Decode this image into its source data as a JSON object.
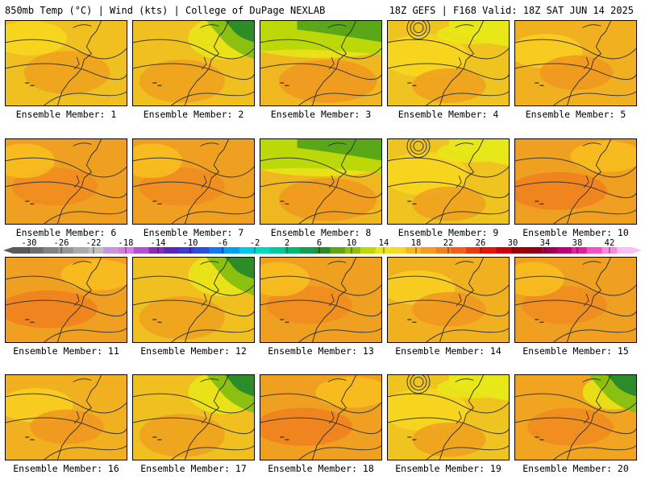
{
  "header": {
    "left": "850mb Temp (°C) | Wind (kts) | College of DuPage NEXLAB",
    "right": "18Z GEFS | F168 Valid: 18Z SAT JUN 14 2025"
  },
  "members": [
    {
      "label": "Ensemble Member: 1",
      "tone": "warm-yellow"
    },
    {
      "label": "Ensemble Member: 2",
      "tone": "green-ne"
    },
    {
      "label": "Ensemble Member: 3",
      "tone": "green-north"
    },
    {
      "label": "Ensemble Member: 4",
      "tone": "yellow-low"
    },
    {
      "label": "Ensemble Member: 5",
      "tone": "yellow-orange"
    },
    {
      "label": "Ensemble Member: 6",
      "tone": "orange"
    },
    {
      "label": "Ensemble Member: 7",
      "tone": "orange"
    },
    {
      "label": "Ensemble Member: 8",
      "tone": "green-north"
    },
    {
      "label": "Ensemble Member: 9",
      "tone": "yellow-low"
    },
    {
      "label": "Ensemble Member: 10",
      "tone": "orange-hot"
    },
    {
      "label": "Ensemble Member: 11",
      "tone": "orange-hot"
    },
    {
      "label": "Ensemble Member: 12",
      "tone": "green-ne"
    },
    {
      "label": "Ensemble Member: 13",
      "tone": "orange"
    },
    {
      "label": "Ensemble Member: 14",
      "tone": "yellow-orange"
    },
    {
      "label": "Ensemble Member: 15",
      "tone": "orange"
    },
    {
      "label": "Ensemble Member: 16",
      "tone": "yellow-orange"
    },
    {
      "label": "Ensemble Member: 17",
      "tone": "green-ne"
    },
    {
      "label": "Ensemble Member: 18",
      "tone": "orange-hot"
    },
    {
      "label": "Ensemble Member: 19",
      "tone": "yellow-low"
    },
    {
      "label": "Ensemble Member: 20",
      "tone": "orange-green"
    }
  ],
  "colorbar": {
    "ticks": [
      "-30",
      "-26",
      "-22",
      "-18",
      "-14",
      "-10",
      "-6",
      "-2",
      "2",
      "6",
      "10",
      "14",
      "18",
      "22",
      "26",
      "30",
      "34",
      "38",
      "42"
    ],
    "colors": [
      "#5a5a5a",
      "#6e6e6e",
      "#828282",
      "#969696",
      "#aaaaaa",
      "#bfbfbf",
      "#c896d8",
      "#d878e0",
      "#b450d0",
      "#8a2cb8",
      "#5a28b8",
      "#3c3cd0",
      "#2850e0",
      "#1478f0",
      "#00a0f0",
      "#00c8e8",
      "#00d8c8",
      "#00c8a0",
      "#00b878",
      "#10a050",
      "#2c8c28",
      "#5aa818",
      "#8cc010",
      "#bcd808",
      "#e8e818",
      "#f8d820",
      "#f8b820",
      "#f89c20",
      "#f08020",
      "#f06018",
      "#e83c10",
      "#e01808",
      "#c80010",
      "#a00008",
      "#900010",
      "#a0004c",
      "#c00078",
      "#e020a0",
      "#f050c8",
      "#f888e0",
      "#f8c0f0"
    ]
  }
}
